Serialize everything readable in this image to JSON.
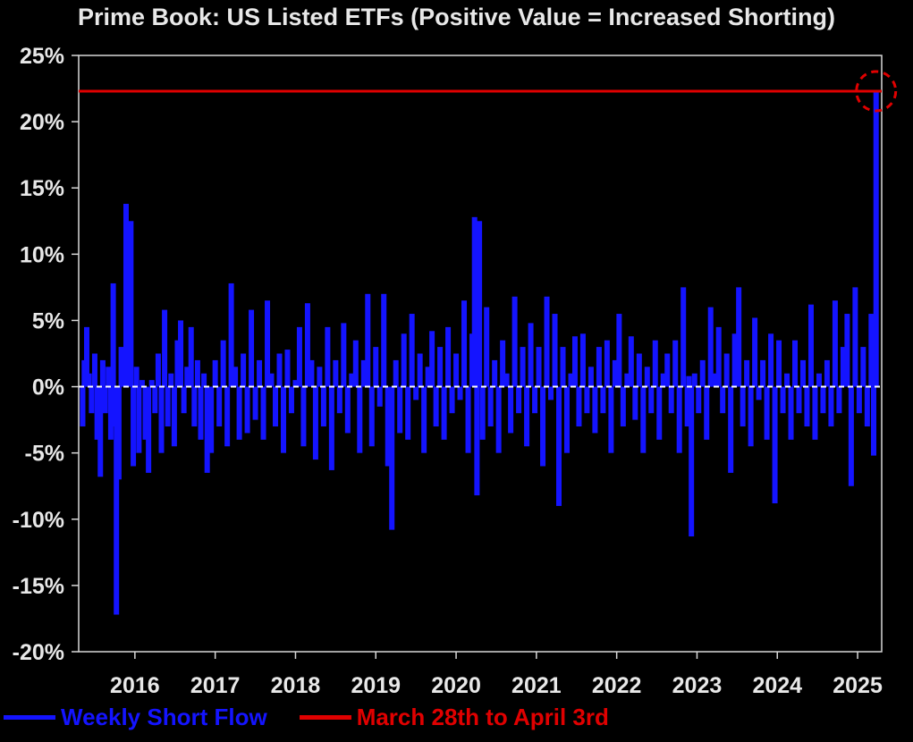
{
  "colors": {
    "background": "#000000",
    "series": "#1414ff",
    "reference": "#e00000",
    "text": "#e8e8e8",
    "zero_line": "#ffffff"
  },
  "chart_data": {
    "type": "bar",
    "title": "Prime Book: US Listed ETFs (Positive Value = Increased Shorting)",
    "xlabel": "",
    "ylabel": "",
    "x_range": [
      2015.3,
      2025.3
    ],
    "ylim": [
      -20,
      25
    ],
    "y_ticks": [
      "25%",
      "20%",
      "15%",
      "10%",
      "5%",
      "0%",
      "-5%",
      "-10%",
      "-15%",
      "-20%"
    ],
    "y_tick_values": [
      25,
      20,
      15,
      10,
      5,
      0,
      -5,
      -10,
      -15,
      -20
    ],
    "x_ticks": [
      "2016",
      "2017",
      "2018",
      "2019",
      "2020",
      "2021",
      "2022",
      "2023",
      "2024",
      "2025"
    ],
    "x_tick_values": [
      2016,
      2017,
      2018,
      2019,
      2020,
      2021,
      2022,
      2023,
      2024,
      2025
    ],
    "grid": false,
    "zero_line": "dashed",
    "legend_position": "bottom-left",
    "series": [
      {
        "name": "Weekly Short Flow",
        "type": "bar",
        "unit": "%",
        "points": [
          [
            2015.35,
            -3
          ],
          [
            2015.37,
            2
          ],
          [
            2015.4,
            4.5
          ],
          [
            2015.43,
            1
          ],
          [
            2015.46,
            -2
          ],
          [
            2015.5,
            2.5
          ],
          [
            2015.53,
            -4
          ],
          [
            2015.57,
            -6.8
          ],
          [
            2015.6,
            2
          ],
          [
            2015.63,
            -2
          ],
          [
            2015.67,
            1.5
          ],
          [
            2015.7,
            -4
          ],
          [
            2015.73,
            7.8
          ],
          [
            2015.75,
            -3
          ],
          [
            2015.77,
            -17.2
          ],
          [
            2015.8,
            -7
          ],
          [
            2015.83,
            3
          ],
          [
            2015.86,
            1
          ],
          [
            2015.89,
            13.8
          ],
          [
            2015.92,
            8
          ],
          [
            2015.95,
            12.5
          ],
          [
            2015.98,
            -6
          ],
          [
            2016.02,
            1.5
          ],
          [
            2016.05,
            -5
          ],
          [
            2016.09,
            0.5
          ],
          [
            2016.13,
            -4
          ],
          [
            2016.17,
            -6.5
          ],
          [
            2016.21,
            0.5
          ],
          [
            2016.25,
            -2
          ],
          [
            2016.29,
            2.5
          ],
          [
            2016.33,
            -5
          ],
          [
            2016.37,
            5.8
          ],
          [
            2016.41,
            -3
          ],
          [
            2016.45,
            1
          ],
          [
            2016.49,
            -4.5
          ],
          [
            2016.53,
            3.5
          ],
          [
            2016.57,
            5
          ],
          [
            2016.61,
            -2
          ],
          [
            2016.65,
            1.5
          ],
          [
            2016.7,
            4.5
          ],
          [
            2016.74,
            -3
          ],
          [
            2016.78,
            2
          ],
          [
            2016.82,
            -4
          ],
          [
            2016.86,
            1
          ],
          [
            2016.9,
            -6.5
          ],
          [
            2016.95,
            -5
          ],
          [
            2017.0,
            2
          ],
          [
            2017.05,
            -3
          ],
          [
            2017.1,
            3.5
          ],
          [
            2017.15,
            -4.5
          ],
          [
            2017.2,
            7.8
          ],
          [
            2017.25,
            1.5
          ],
          [
            2017.3,
            -4
          ],
          [
            2017.35,
            2.5
          ],
          [
            2017.4,
            -3.5
          ],
          [
            2017.45,
            5.8
          ],
          [
            2017.5,
            -2.5
          ],
          [
            2017.55,
            2
          ],
          [
            2017.6,
            -4
          ],
          [
            2017.65,
            6.5
          ],
          [
            2017.7,
            1
          ],
          [
            2017.75,
            -3
          ],
          [
            2017.8,
            2.5
          ],
          [
            2017.85,
            -5
          ],
          [
            2017.9,
            2.8
          ],
          [
            2017.95,
            -2
          ],
          [
            2018.0,
            0.5
          ],
          [
            2018.05,
            4.5
          ],
          [
            2018.1,
            -4.5
          ],
          [
            2018.15,
            6.3
          ],
          [
            2018.2,
            2
          ],
          [
            2018.25,
            -5.5
          ],
          [
            2018.3,
            1.5
          ],
          [
            2018.35,
            -3
          ],
          [
            2018.4,
            4.5
          ],
          [
            2018.45,
            -6.3
          ],
          [
            2018.5,
            2
          ],
          [
            2018.55,
            -2
          ],
          [
            2018.6,
            4.8
          ],
          [
            2018.65,
            -3.5
          ],
          [
            2018.7,
            1
          ],
          [
            2018.75,
            3.5
          ],
          [
            2018.8,
            -5
          ],
          [
            2018.85,
            2
          ],
          [
            2018.9,
            7
          ],
          [
            2018.95,
            -4.5
          ],
          [
            2019.0,
            3
          ],
          [
            2019.05,
            -1.5
          ],
          [
            2019.1,
            7
          ],
          [
            2019.15,
            -6
          ],
          [
            2019.2,
            -10.8
          ],
          [
            2019.25,
            2
          ],
          [
            2019.3,
            -3.5
          ],
          [
            2019.35,
            4
          ],
          [
            2019.4,
            -4
          ],
          [
            2019.45,
            5.5
          ],
          [
            2019.5,
            -1
          ],
          [
            2019.55,
            2.5
          ],
          [
            2019.6,
            -5
          ],
          [
            2019.65,
            1.5
          ],
          [
            2019.7,
            4.2
          ],
          [
            2019.75,
            -3
          ],
          [
            2019.8,
            3
          ],
          [
            2019.85,
            -4
          ],
          [
            2019.9,
            4.5
          ],
          [
            2019.95,
            -2
          ],
          [
            2020.0,
            2.5
          ],
          [
            2020.05,
            -1
          ],
          [
            2020.1,
            6.5
          ],
          [
            2020.15,
            -5
          ],
          [
            2020.2,
            4
          ],
          [
            2020.23,
            12.8
          ],
          [
            2020.26,
            -8.2
          ],
          [
            2020.29,
            12.5
          ],
          [
            2020.33,
            -4
          ],
          [
            2020.38,
            6
          ],
          [
            2020.43,
            -3
          ],
          [
            2020.48,
            2
          ],
          [
            2020.53,
            -5
          ],
          [
            2020.58,
            3.5
          ],
          [
            2020.63,
            1
          ],
          [
            2020.68,
            -3.5
          ],
          [
            2020.73,
            6.8
          ],
          [
            2020.78,
            -2
          ],
          [
            2020.83,
            3
          ],
          [
            2020.88,
            -4.5
          ],
          [
            2020.93,
            4.8
          ],
          [
            2020.98,
            -2
          ],
          [
            2021.03,
            3
          ],
          [
            2021.08,
            -6
          ],
          [
            2021.13,
            6.8
          ],
          [
            2021.18,
            -1
          ],
          [
            2021.23,
            5.5
          ],
          [
            2021.28,
            -9
          ],
          [
            2021.33,
            3
          ],
          [
            2021.38,
            -5
          ],
          [
            2021.43,
            1
          ],
          [
            2021.48,
            3.8
          ],
          [
            2021.53,
            -3
          ],
          [
            2021.58,
            4
          ],
          [
            2021.63,
            -2
          ],
          [
            2021.68,
            1.5
          ],
          [
            2021.73,
            -3.5
          ],
          [
            2021.78,
            3
          ],
          [
            2021.83,
            -2
          ],
          [
            2021.88,
            3.5
          ],
          [
            2021.93,
            -5
          ],
          [
            2021.98,
            2
          ],
          [
            2022.03,
            5.5
          ],
          [
            2022.08,
            -3
          ],
          [
            2022.13,
            1
          ],
          [
            2022.18,
            3.8
          ],
          [
            2022.23,
            -2.5
          ],
          [
            2022.28,
            2.5
          ],
          [
            2022.33,
            -5
          ],
          [
            2022.38,
            1.5
          ],
          [
            2022.43,
            -2
          ],
          [
            2022.48,
            3.5
          ],
          [
            2022.53,
            -4
          ],
          [
            2022.58,
            1
          ],
          [
            2022.63,
            2.5
          ],
          [
            2022.68,
            -2
          ],
          [
            2022.73,
            3.5
          ],
          [
            2022.78,
            -5
          ],
          [
            2022.83,
            7.5
          ],
          [
            2022.88,
            -3
          ],
          [
            2022.9,
            0.8
          ],
          [
            2022.93,
            -11.3
          ],
          [
            2022.97,
            1
          ],
          [
            2023.02,
            -2
          ],
          [
            2023.07,
            2
          ],
          [
            2023.12,
            -4
          ],
          [
            2023.17,
            6
          ],
          [
            2023.22,
            1
          ],
          [
            2023.27,
            4.5
          ],
          [
            2023.32,
            -2
          ],
          [
            2023.37,
            2.5
          ],
          [
            2023.42,
            -6.5
          ],
          [
            2023.47,
            4
          ],
          [
            2023.52,
            7.5
          ],
          [
            2023.57,
            -3
          ],
          [
            2023.62,
            2
          ],
          [
            2023.67,
            -4.5
          ],
          [
            2023.72,
            5.2
          ],
          [
            2023.77,
            -1
          ],
          [
            2023.82,
            2
          ],
          [
            2023.87,
            -4
          ],
          [
            2023.92,
            4
          ],
          [
            2023.97,
            -8.8
          ],
          [
            2024.02,
            3.5
          ],
          [
            2024.07,
            -2
          ],
          [
            2024.12,
            1
          ],
          [
            2024.17,
            -4
          ],
          [
            2024.22,
            3.5
          ],
          [
            2024.27,
            -2
          ],
          [
            2024.32,
            2
          ],
          [
            2024.37,
            -3
          ],
          [
            2024.42,
            6.2
          ],
          [
            2024.47,
            -4
          ],
          [
            2024.52,
            1
          ],
          [
            2024.57,
            -2
          ],
          [
            2024.62,
            2
          ],
          [
            2024.67,
            -3
          ],
          [
            2024.72,
            6.5
          ],
          [
            2024.77,
            -2
          ],
          [
            2024.82,
            3
          ],
          [
            2024.87,
            5.5
          ],
          [
            2024.92,
            -7.5
          ],
          [
            2024.97,
            7.5
          ],
          [
            2025.02,
            -2
          ],
          [
            2025.07,
            3
          ],
          [
            2025.12,
            -3
          ],
          [
            2025.17,
            5.5
          ],
          [
            2025.2,
            -5.2
          ],
          [
            2025.23,
            22.3
          ]
        ]
      },
      {
        "name": "March 28th to April 3rd",
        "type": "hline",
        "value": 22.3
      }
    ],
    "annotations": [
      {
        "type": "dashed-circle",
        "target": "last-point"
      }
    ]
  }
}
